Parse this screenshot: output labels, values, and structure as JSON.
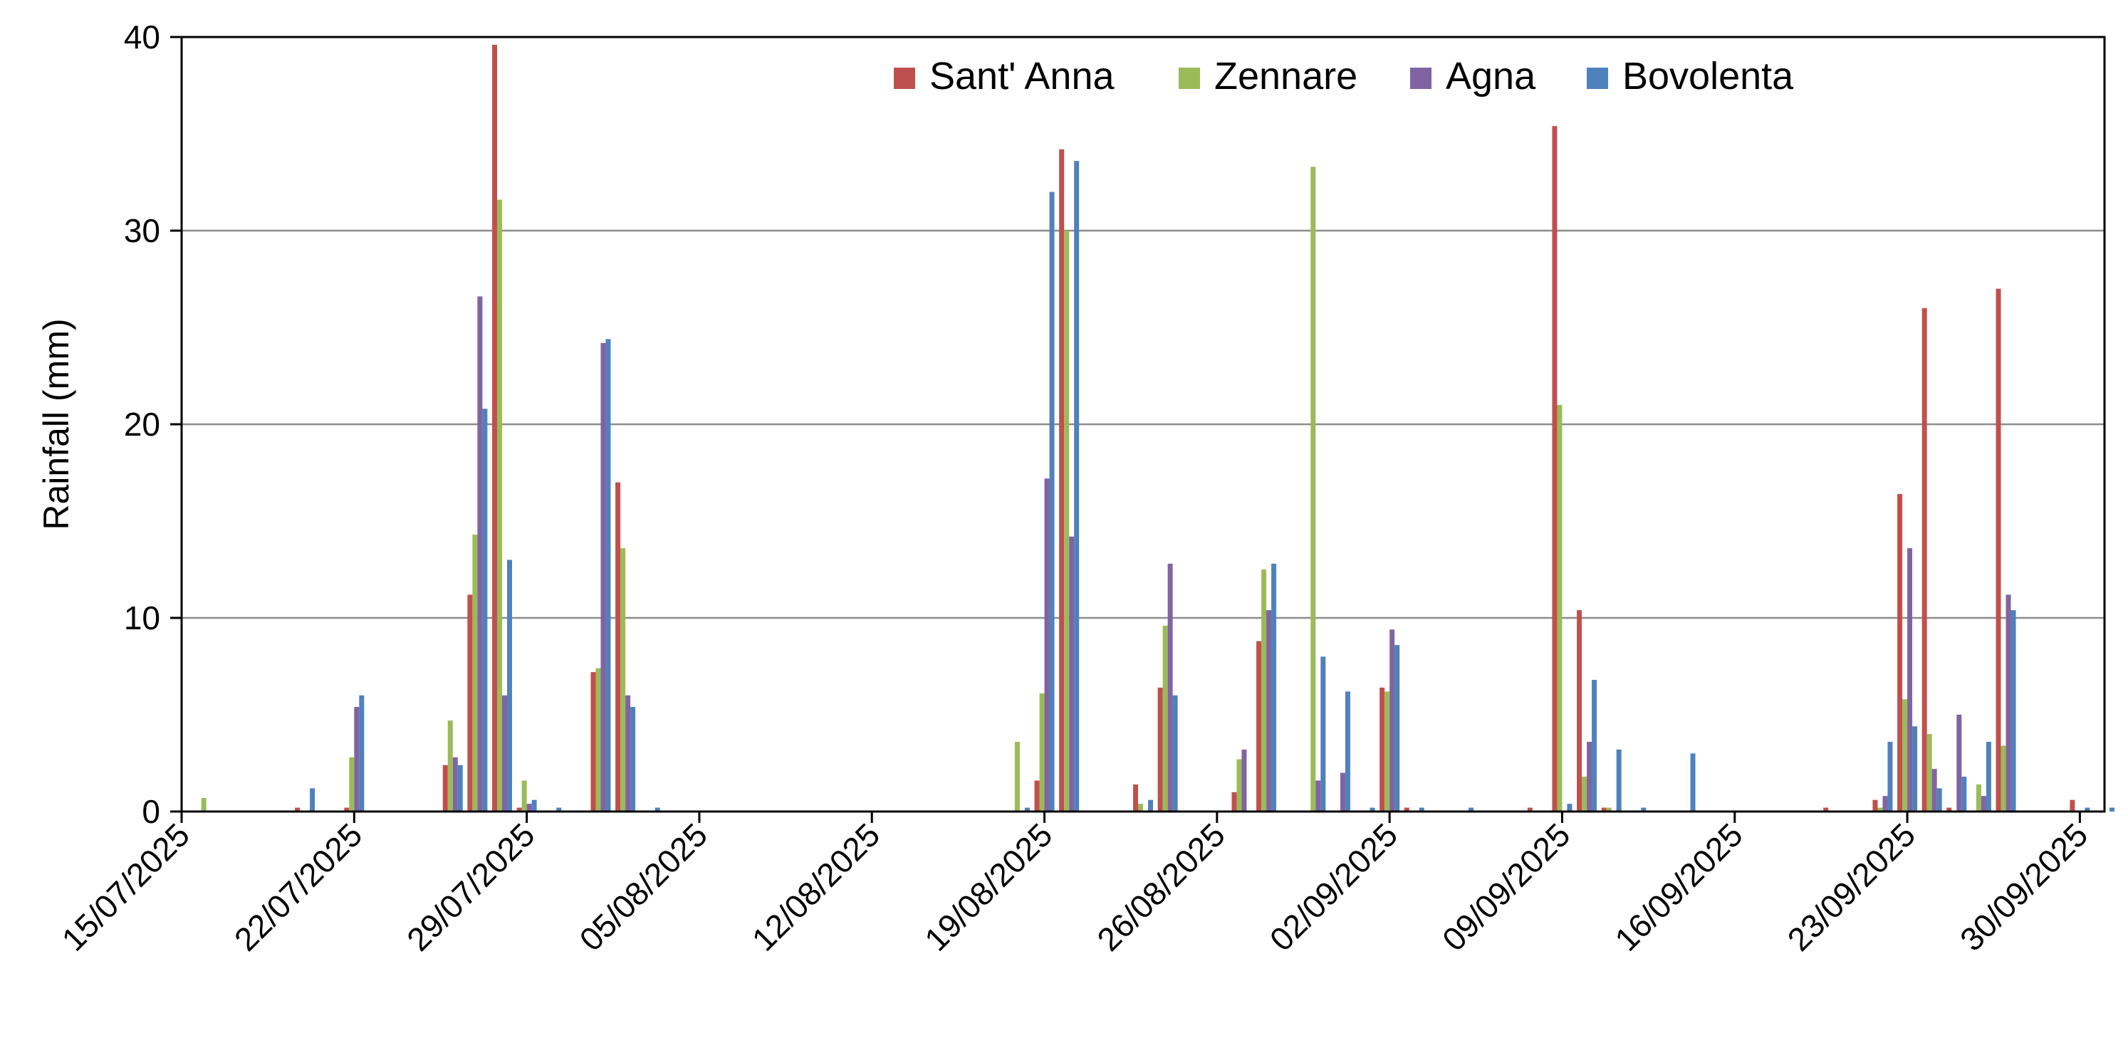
{
  "chart_data": {
    "type": "bar",
    "ylabel": "Rainfall (mm)",
    "ylim": [
      0,
      40
    ],
    "yticks": [
      0,
      10,
      20,
      30,
      40
    ],
    "x_range": [
      "2025-07-15",
      "2025-10-01"
    ],
    "xtick_labels": [
      "15/07/2025",
      "22/07/2025",
      "29/07/2025",
      "05/08/2025",
      "12/08/2025",
      "19/08/2025",
      "26/08/2025",
      "02/09/2025",
      "09/09/2025",
      "16/09/2025",
      "23/09/2025",
      "30/09/2025"
    ],
    "grid": "horizontal",
    "legend_position": "top-right",
    "series": [
      {
        "name": "Sant' Anna",
        "color": "#c0504d",
        "points": [
          [
            "2025-07-20",
            0.2
          ],
          [
            "2025-07-22",
            0.2
          ],
          [
            "2025-07-26",
            2.4
          ],
          [
            "2025-07-27",
            11.2
          ],
          [
            "2025-07-28",
            39.6
          ],
          [
            "2025-07-29",
            0.2
          ],
          [
            "2025-08-01",
            7.2
          ],
          [
            "2025-08-02",
            17.0
          ],
          [
            "2025-08-19",
            1.6
          ],
          [
            "2025-08-20",
            34.2
          ],
          [
            "2025-08-23",
            1.4
          ],
          [
            "2025-08-24",
            6.4
          ],
          [
            "2025-08-27",
            1.0
          ],
          [
            "2025-08-28",
            8.8
          ],
          [
            "2025-09-02",
            6.4
          ],
          [
            "2025-09-03",
            0.2
          ],
          [
            "2025-09-08",
            0.2
          ],
          [
            "2025-09-09",
            35.4
          ],
          [
            "2025-09-10",
            10.4
          ],
          [
            "2025-09-11",
            0.2
          ],
          [
            "2025-09-20",
            0.2
          ],
          [
            "2025-09-22",
            0.6
          ],
          [
            "2025-09-23",
            16.4
          ],
          [
            "2025-09-24",
            26.0
          ],
          [
            "2025-09-25",
            0.2
          ],
          [
            "2025-09-27",
            27.0
          ],
          [
            "2025-09-30",
            0.6
          ]
        ]
      },
      {
        "name": "Zennare",
        "color": "#9bbb59",
        "points": [
          [
            "2025-07-16",
            0.7
          ],
          [
            "2025-07-22",
            2.8
          ],
          [
            "2025-07-26",
            4.7
          ],
          [
            "2025-07-27",
            14.3
          ],
          [
            "2025-07-28",
            31.6
          ],
          [
            "2025-07-29",
            1.6
          ],
          [
            "2025-08-01",
            7.4
          ],
          [
            "2025-08-02",
            13.6
          ],
          [
            "2025-08-18",
            3.6
          ],
          [
            "2025-08-19",
            6.1
          ],
          [
            "2025-08-20",
            30.0
          ],
          [
            "2025-08-23",
            0.4
          ],
          [
            "2025-08-24",
            9.6
          ],
          [
            "2025-08-27",
            2.7
          ],
          [
            "2025-08-28",
            12.5
          ],
          [
            "2025-08-30",
            33.3
          ],
          [
            "2025-09-02",
            6.2
          ],
          [
            "2025-09-09",
            21.0
          ],
          [
            "2025-09-10",
            1.8
          ],
          [
            "2025-09-11",
            0.2
          ],
          [
            "2025-09-22",
            0.2
          ],
          [
            "2025-09-23",
            5.8
          ],
          [
            "2025-09-24",
            4.0
          ],
          [
            "2025-09-26",
            1.4
          ],
          [
            "2025-09-27",
            3.4
          ]
        ]
      },
      {
        "name": "Agna",
        "color": "#8064a2",
        "points": [
          [
            "2025-07-22",
            5.4
          ],
          [
            "2025-07-26",
            2.8
          ],
          [
            "2025-07-27",
            26.6
          ],
          [
            "2025-07-28",
            6.0
          ],
          [
            "2025-07-29",
            0.4
          ],
          [
            "2025-08-01",
            24.2
          ],
          [
            "2025-08-02",
            6.0
          ],
          [
            "2025-08-19",
            17.2
          ],
          [
            "2025-08-20",
            14.2
          ],
          [
            "2025-08-24",
            12.8
          ],
          [
            "2025-08-27",
            3.2
          ],
          [
            "2025-08-28",
            10.4
          ],
          [
            "2025-08-30",
            1.6
          ],
          [
            "2025-08-31",
            2.0
          ],
          [
            "2025-09-02",
            9.4
          ],
          [
            "2025-09-10",
            3.6
          ],
          [
            "2025-09-22",
            0.8
          ],
          [
            "2025-09-23",
            13.6
          ],
          [
            "2025-09-24",
            2.2
          ],
          [
            "2025-09-25",
            5.0
          ],
          [
            "2025-09-26",
            0.8
          ],
          [
            "2025-09-27",
            11.2
          ]
        ]
      },
      {
        "name": "Bovolenta",
        "color": "#4f81bd",
        "points": [
          [
            "2025-07-20",
            1.2
          ],
          [
            "2025-07-22",
            6.0
          ],
          [
            "2025-07-26",
            2.4
          ],
          [
            "2025-07-27",
            20.8
          ],
          [
            "2025-07-28",
            13.0
          ],
          [
            "2025-07-29",
            0.6
          ],
          [
            "2025-07-30",
            0.2
          ],
          [
            "2025-08-01",
            24.4
          ],
          [
            "2025-08-02",
            5.4
          ],
          [
            "2025-08-03",
            0.2
          ],
          [
            "2025-08-18",
            0.2
          ],
          [
            "2025-08-19",
            32.0
          ],
          [
            "2025-08-20",
            33.6
          ],
          [
            "2025-08-23",
            0.6
          ],
          [
            "2025-08-24",
            6.0
          ],
          [
            "2025-08-28",
            12.8
          ],
          [
            "2025-08-30",
            8.0
          ],
          [
            "2025-08-31",
            6.2
          ],
          [
            "2025-09-01",
            0.2
          ],
          [
            "2025-09-02",
            8.6
          ],
          [
            "2025-09-03",
            0.2
          ],
          [
            "2025-09-05",
            0.2
          ],
          [
            "2025-09-09",
            0.4
          ],
          [
            "2025-09-10",
            6.8
          ],
          [
            "2025-09-11",
            3.2
          ],
          [
            "2025-09-12",
            0.2
          ],
          [
            "2025-09-14",
            3.0
          ],
          [
            "2025-09-22",
            3.6
          ],
          [
            "2025-09-23",
            4.4
          ],
          [
            "2025-09-24",
            1.2
          ],
          [
            "2025-09-25",
            1.8
          ],
          [
            "2025-09-26",
            3.6
          ],
          [
            "2025-09-27",
            10.4
          ],
          [
            "2025-09-30",
            0.2
          ],
          [
            "2025-10-01",
            0.2
          ]
        ]
      }
    ]
  }
}
